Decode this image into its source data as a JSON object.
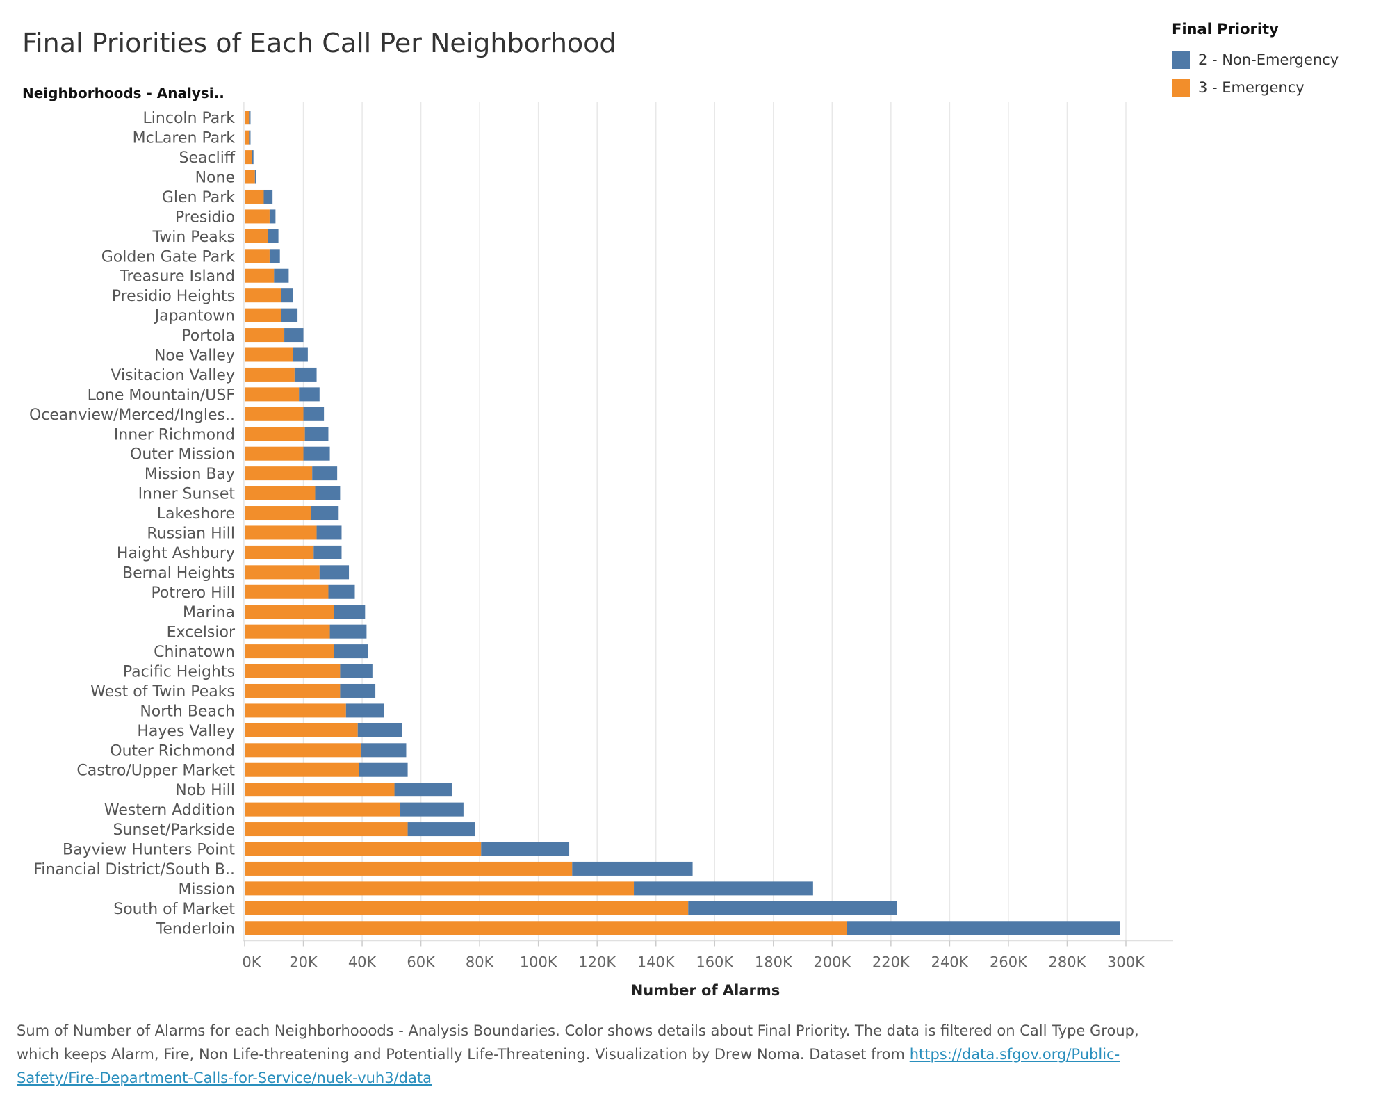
{
  "title": "Final Priorities of Each Call Per Neighborhood",
  "row_header": "Neighborhoods - Analysi..",
  "legend": {
    "title": "Final Priority",
    "items": [
      {
        "label": "2 - Non-Emergency",
        "color": "#4e79a7"
      },
      {
        "label": "3 - Emergency",
        "color": "#f28e2b"
      }
    ]
  },
  "caption": {
    "text": "Sum of Number of Alarms for each Neighborhooods - Analysis Boundaries.  Color shows details about Final Priority. The data is filtered on Call Type Group, which keeps Alarm, Fire, Non Life-threatening and Potentially Life-Threatening. Visualization by Drew Noma. Dataset from",
    "link": "https://data.sfgov.org/Public-Safety/Fire-Department-Calls-for-Service/nuek-vuh3/data"
  },
  "chart_data": {
    "type": "bar",
    "orientation": "horizontal",
    "stacked": true,
    "xlabel": "Number of Alarms",
    "ylabel": "Neighborhooods - Analysi..",
    "xlim": [
      0,
      300000
    ],
    "x_ticks": [
      "0K",
      "20K",
      "40K",
      "60K",
      "80K",
      "100K",
      "120K",
      "140K",
      "160K",
      "180K",
      "200K",
      "220K",
      "240K",
      "260K",
      "280K",
      "300K"
    ],
    "grid": true,
    "categories": [
      "Lincoln Park",
      "McLaren Park",
      "Seacliff",
      "None",
      "Glen Park",
      "Presidio",
      "Twin Peaks",
      "Golden Gate Park",
      "Treasure Island",
      "Presidio Heights",
      "Japantown",
      "Portola",
      "Noe Valley",
      "Visitacion Valley",
      "Lone Mountain/USF",
      "Oceanview/Merced/Ingles..",
      "Inner Richmond",
      "Outer Mission",
      "Mission Bay",
      "Inner Sunset",
      "Lakeshore",
      "Russian Hill",
      "Haight Ashbury",
      "Bernal Heights",
      "Potrero Hill",
      "Marina",
      "Excelsior",
      "Chinatown",
      "Pacific Heights",
      "West of Twin Peaks",
      "North Beach",
      "Hayes Valley",
      "Outer Richmond",
      "Castro/Upper Market",
      "Nob Hill",
      "Western Addition",
      "Sunset/Parkside",
      "Bayview Hunters Point",
      "Financial District/South B..",
      "Mission",
      "South of Market",
      "Tenderloin"
    ],
    "series": [
      {
        "name": "3 - Emergency",
        "color": "#f28e2b",
        "values": [
          1500,
          1500,
          2500,
          3500,
          6500,
          8500,
          8000,
          8500,
          10000,
          12500,
          12500,
          13500,
          16500,
          17000,
          18500,
          20000,
          20500,
          20000,
          23000,
          24000,
          22500,
          24500,
          23500,
          25500,
          28500,
          30500,
          29000,
          30500,
          32500,
          32500,
          34500,
          38500,
          39500,
          39000,
          51000,
          53000,
          55500,
          80500,
          111500,
          132500,
          151000,
          205000
        ]
      },
      {
        "name": "2 - Non-Emergency",
        "color": "#4e79a7",
        "values": [
          500,
          500,
          500,
          500,
          3000,
          2000,
          3500,
          3500,
          5000,
          4000,
          5500,
          6500,
          5000,
          7500,
          7000,
          7000,
          8000,
          9000,
          8500,
          8500,
          9500,
          8500,
          9500,
          10000,
          9000,
          10500,
          12500,
          11500,
          11000,
          12000,
          13000,
          15000,
          15500,
          16500,
          19500,
          21500,
          23000,
          30000,
          41000,
          61000,
          71000,
          93000
        ]
      }
    ]
  }
}
